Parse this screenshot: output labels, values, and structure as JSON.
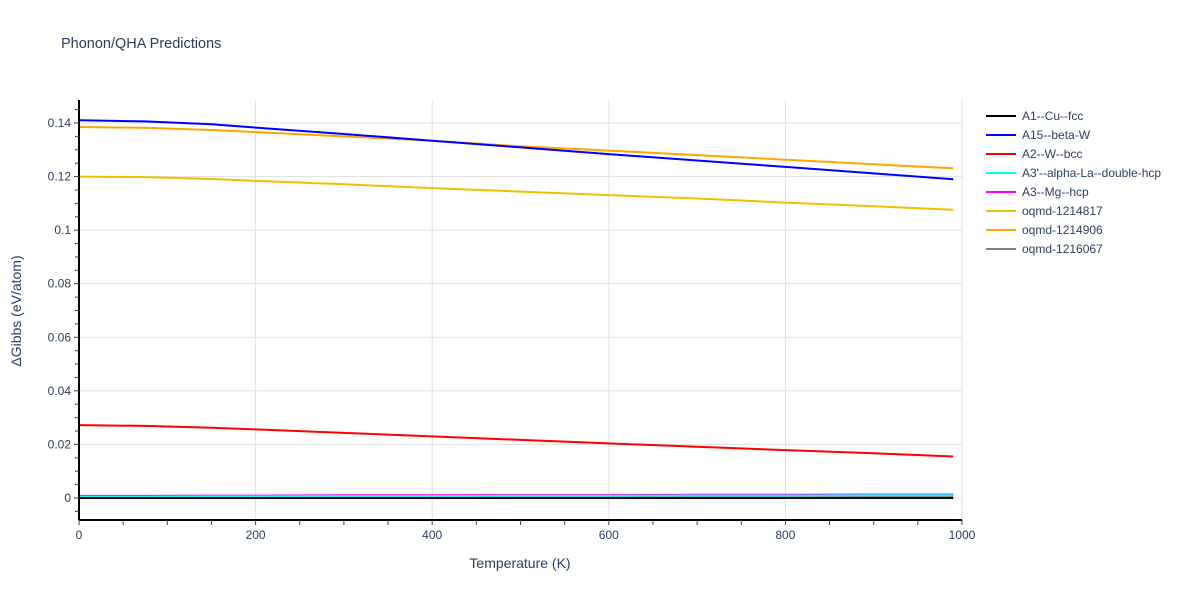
{
  "chart_data": {
    "type": "line",
    "title": "Phonon/QHA Predictions",
    "xlabel": "Temperature (K)",
    "ylabel": "ΔGibbs (eV/atom)",
    "xlim": [
      0,
      1000
    ],
    "ylim": [
      -0.008,
      0.149
    ],
    "x_ticks": [
      0,
      200,
      400,
      600,
      800,
      1000
    ],
    "x_tick_labels": [
      "0",
      "200",
      "400",
      "600",
      "800",
      "1000"
    ],
    "y_ticks": [
      0,
      0.02,
      0.04,
      0.06,
      0.08,
      0.1,
      0.12,
      0.14
    ],
    "y_tick_labels": [
      "0",
      "0.02",
      "0.04",
      "0.06",
      "0.08",
      "0.1",
      "0.12",
      "0.14"
    ],
    "grid": true,
    "legend_position": "right",
    "x": [
      0,
      75,
      150,
      200,
      300,
      400,
      500,
      600,
      700,
      800,
      900,
      990
    ],
    "series": [
      {
        "name": "A1--Cu--fcc",
        "color": "#000000",
        "values": [
          0,
          0,
          0,
          0,
          0,
          0,
          0,
          0,
          0,
          0,
          0,
          0
        ]
      },
      {
        "name": "A15--beta-W",
        "color": "#0000ff",
        "values": [
          0.141,
          0.1406,
          0.1395,
          0.1383,
          0.1359,
          0.1334,
          0.1309,
          0.1284,
          0.126,
          0.1236,
          0.1212,
          0.119
        ]
      },
      {
        "name": "A2--W--bcc",
        "color": "#ff0000",
        "values": [
          0.0272,
          0.0269,
          0.0262,
          0.0256,
          0.0243,
          0.023,
          0.0217,
          0.0204,
          0.0191,
          0.0179,
          0.0167,
          0.0155
        ]
      },
      {
        "name": "A3'--alpha-La--double-hcp",
        "color": "#00ffff",
        "values": [
          0.0005,
          0.0005,
          0.0006,
          0.0006,
          0.0007,
          0.0007,
          0.0008,
          0.0008,
          0.0009,
          0.0009,
          0.001,
          0.001
        ]
      },
      {
        "name": "A3--Mg--hcp",
        "color": "#ff00ff",
        "values": [
          0.0008,
          0.0008,
          0.0009,
          0.0009,
          0.001,
          0.001,
          0.0011,
          0.0011,
          0.0012,
          0.0012,
          0.0013,
          0.0013
        ]
      },
      {
        "name": "oqmd-1214817",
        "color": "#f0c000",
        "values": [
          0.12,
          0.1198,
          0.1191,
          0.1184,
          0.1171,
          0.1157,
          0.1144,
          0.1131,
          0.1118,
          0.1103,
          0.1089,
          0.1076
        ]
      },
      {
        "name": "oqmd-1214906",
        "color": "#ffa500",
        "values": [
          0.1385,
          0.1382,
          0.1374,
          0.1366,
          0.135,
          0.1334,
          0.1313,
          0.1297,
          0.128,
          0.1263,
          0.1246,
          0.1231
        ]
      },
      {
        "name": "oqmd-1216067",
        "color": "#808080",
        "values": [
          0.0003,
          0.0003,
          0.0004,
          0.0004,
          0.0004,
          0.0005,
          0.0005,
          0.0005,
          0.0006,
          0.0006,
          0.0006,
          0.0007
        ]
      }
    ]
  }
}
